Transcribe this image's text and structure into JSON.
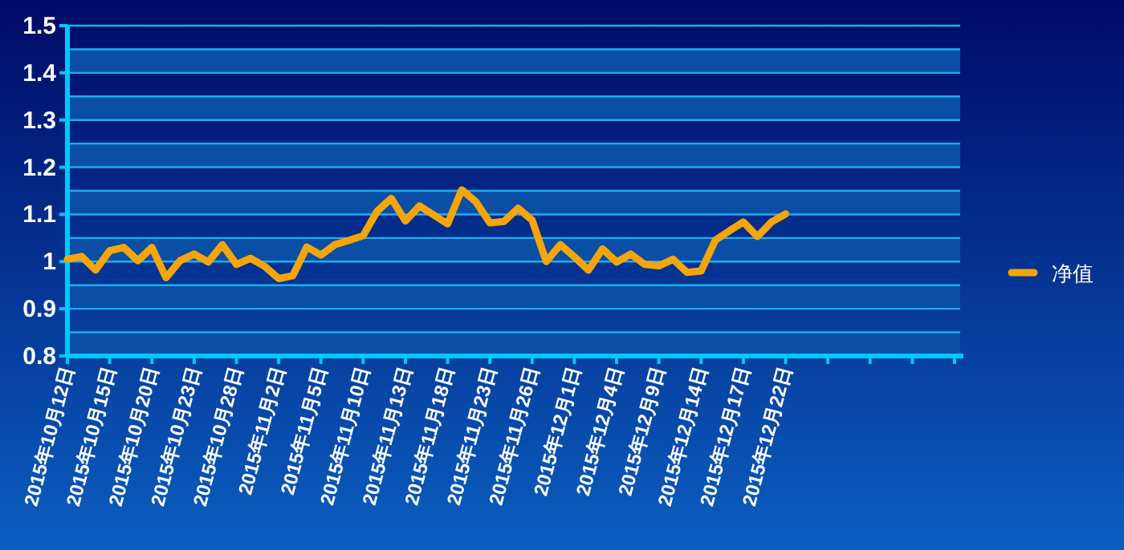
{
  "chart_data": {
    "type": "line",
    "categories": [
      "2015年10月12日",
      null,
      null,
      "2015年10月15日",
      null,
      null,
      "2015年10月20日",
      null,
      null,
      "2015年10月23日",
      null,
      null,
      "2015年10月28日",
      null,
      null,
      "2015年11月2日",
      null,
      null,
      "2015年11月5日",
      null,
      null,
      "2015年11月10日",
      null,
      null,
      "2015年11月13日",
      null,
      null,
      "2015年11月18日",
      null,
      null,
      "2015年11月23日",
      null,
      null,
      "2015年11月26日",
      null,
      null,
      "2015年12月1日",
      null,
      null,
      "2015年12月4日",
      null,
      null,
      "2015年12月9日",
      null,
      null,
      "2015年12月14日",
      null,
      null,
      "2015年12月17日",
      null,
      null,
      "2015年12月22日",
      null,
      null,
      null,
      null,
      null,
      null,
      null,
      null,
      null,
      null,
      null,
      null
    ],
    "series": [
      {
        "name": "净值",
        "color": "#f5a50a",
        "values": [
          1.005,
          1.011,
          0.982,
          1.023,
          1.03,
          1.002,
          1.03,
          0.966,
          1.002,
          1.016,
          0.999,
          1.036,
          0.994,
          1.007,
          0.99,
          0.964,
          0.97,
          1.031,
          1.014,
          1.036,
          1.045,
          1.055,
          1.107,
          1.134,
          1.086,
          1.118,
          1.099,
          1.08,
          1.152,
          1.127,
          1.082,
          1.085,
          1.113,
          1.088,
          1.0,
          1.036,
          1.01,
          0.982,
          1.027,
          0.999,
          1.016,
          0.994,
          0.991,
          1.005,
          0.977,
          0.98,
          1.045,
          1.065,
          1.084,
          1.053,
          1.084,
          1.101,
          null,
          null,
          null,
          null,
          null,
          null,
          null,
          null,
          null,
          null,
          null,
          null
        ]
      }
    ],
    "ylim": [
      0.8,
      1.5
    ],
    "yticks": [
      0.8,
      {
        "value": 0.85,
        "label": null
      },
      0.9,
      {
        "value": 0.95,
        "label": null
      },
      1,
      {
        "value": 1.05,
        "label": null
      },
      1.1,
      {
        "value": 1.15,
        "label": null
      },
      1.2,
      {
        "value": 1.25,
        "label": null
      },
      1.3,
      {
        "value": 1.35,
        "label": null
      },
      1.4,
      {
        "value": 1.45,
        "label": null
      },
      1.5
    ],
    "bands": [
      {
        "axis": "y",
        "from": 0.8,
        "to": 0.85,
        "color": "#0a4ea6"
      },
      {
        "axis": "y",
        "from": 0.9,
        "to": 0.95,
        "color": "#0a4ea6"
      },
      {
        "axis": "y",
        "from": 1.0,
        "to": 1.05,
        "color": "#0a4ea6"
      },
      {
        "axis": "y",
        "from": 1.1,
        "to": 1.15,
        "color": "#0a4ea6"
      },
      {
        "axis": "y",
        "from": 1.2,
        "to": 1.25,
        "color": "#0a4ea6"
      },
      {
        "axis": "y",
        "from": 1.3,
        "to": 1.35,
        "color": "#0a4ea6"
      },
      {
        "axis": "y",
        "from": 1.4,
        "to": 1.45,
        "color": "#0a4ea6"
      }
    ],
    "grid": "y",
    "legend": "right",
    "marker": "none",
    "line_style": "solid"
  }
}
